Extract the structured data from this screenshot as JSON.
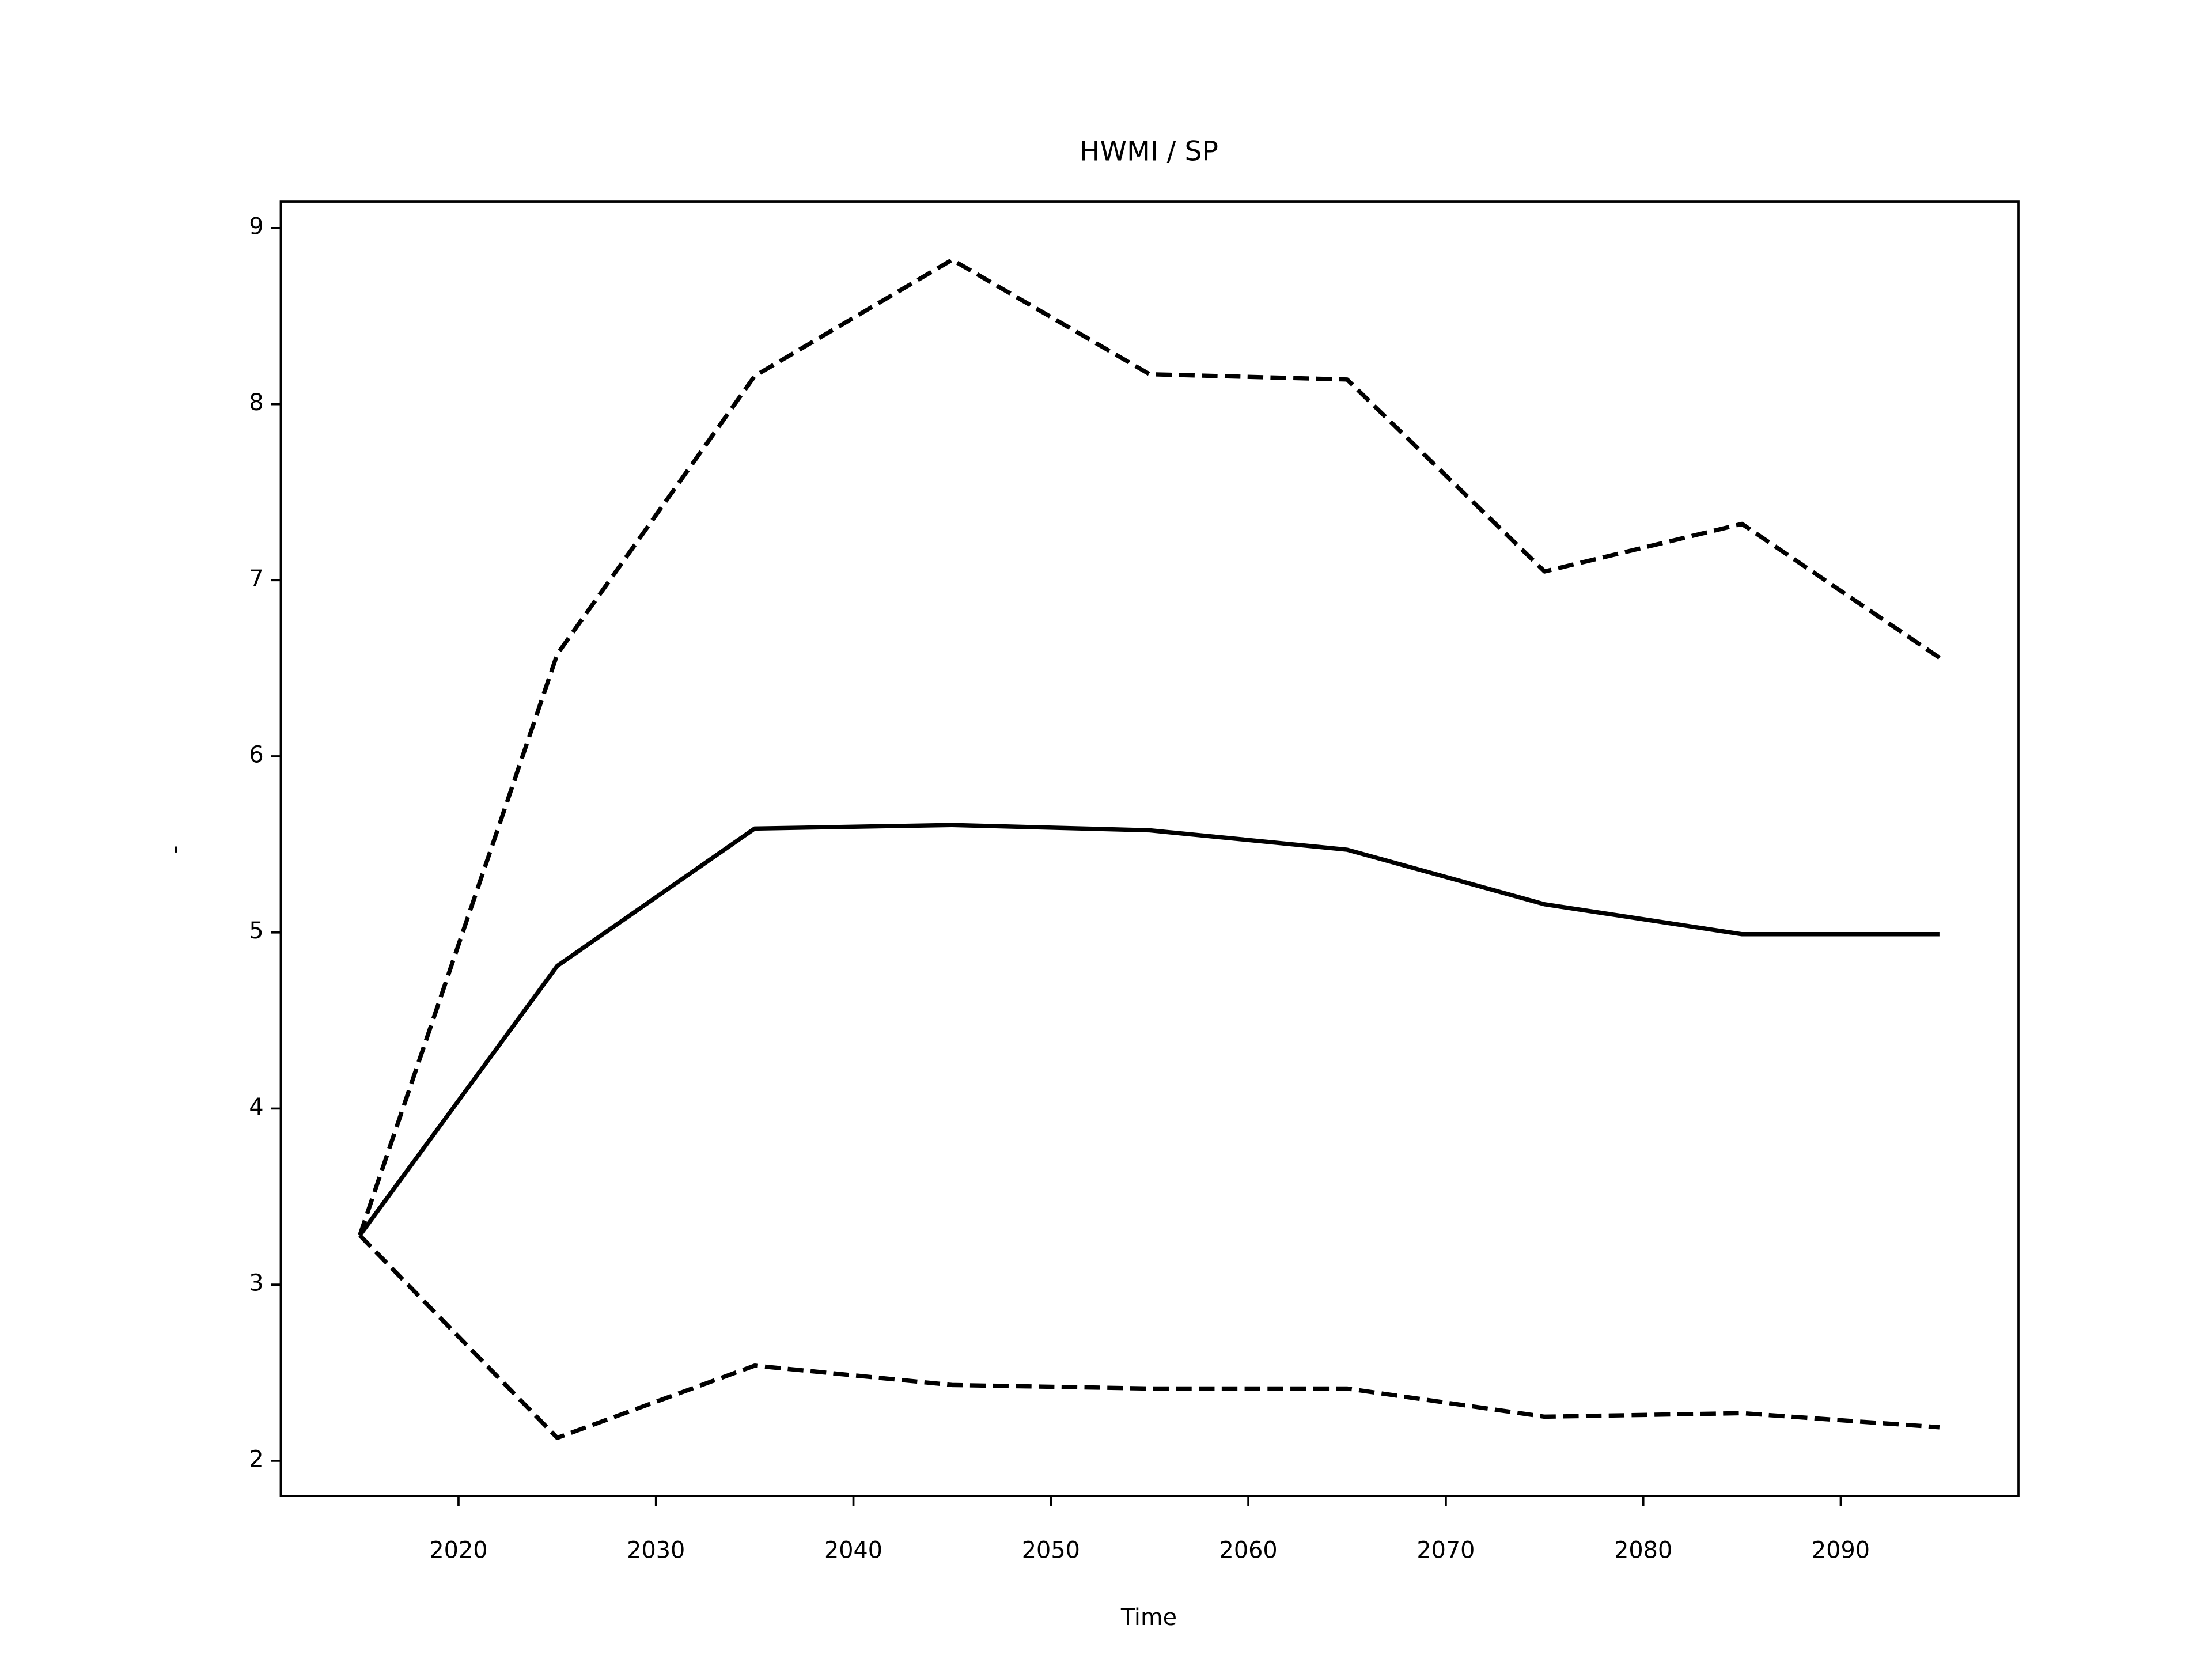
{
  "chart_data": {
    "type": "line",
    "title": "HWMI / SP",
    "xlabel": "Time",
    "ylabel": "-",
    "x": [
      2015,
      2025,
      2035,
      2045,
      2055,
      2065,
      2075,
      2085,
      2095
    ],
    "series": [
      {
        "color": "#000000",
        "linestyle": "solid",
        "values": [
          3.28,
          4.81,
          5.59,
          5.61,
          5.58,
          5.47,
          5.16,
          4.99,
          4.99
        ]
      },
      {
        "color": "#000000",
        "linestyle": "dashed",
        "values": [
          3.28,
          6.58,
          8.16,
          8.82,
          8.17,
          8.14,
          7.05,
          7.32,
          6.56
        ]
      },
      {
        "color": "#000000",
        "linestyle": "dashed",
        "values": [
          3.28,
          2.13,
          2.54,
          2.43,
          2.41,
          2.41,
          2.25,
          2.27,
          2.19
        ]
      }
    ],
    "xlim": [
      2011,
      2099
    ],
    "xticks": [
      2020,
      2030,
      2040,
      2050,
      2060,
      2070,
      2080,
      2090
    ],
    "ylim": [
      1.8,
      9.15
    ],
    "yticks": [
      2,
      3,
      4,
      5,
      6,
      7,
      8,
      9
    ],
    "grid": false
  }
}
